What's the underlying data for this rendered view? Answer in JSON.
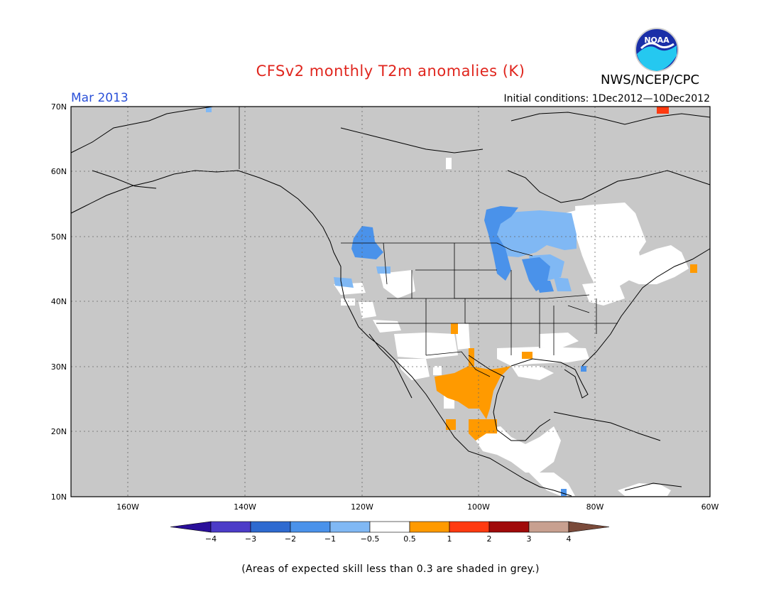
{
  "title": "CFSv2 monthly T2m anomalies (K)",
  "org": "NWS/NCEP/CPC",
  "logo_text": "NOAA",
  "month": "Mar 2013",
  "initial_conditions": "Initial conditions: 1Dec2012—10Dec2012",
  "footnote": "(Areas of expected skill less than 0.3 are shaded in grey.)",
  "lat_labels": [
    "70N",
    "60N",
    "50N",
    "40N",
    "30N",
    "20N",
    "10N"
  ],
  "lon_labels": [
    "160W",
    "140W",
    "120W",
    "100W",
    "80W",
    "60W"
  ],
  "colorbar": {
    "labels": [
      "−4",
      "−3",
      "−2",
      "−1",
      "−0.5",
      "0.5",
      "1",
      "2",
      "3",
      "4"
    ],
    "colors": [
      "#2a0f9a",
      "#4c3cc8",
      "#2e6ad0",
      "#4a92ea",
      "#80b8f4",
      "#ffffff",
      "#ff9a00",
      "#ff3a10",
      "#a00a0a",
      "#c8a090",
      "#7a4a3a"
    ]
  },
  "colors": {
    "skill_grey": "#c8c8c8",
    "title_red": "#e0261e",
    "month_blue": "#2a50d8"
  }
}
